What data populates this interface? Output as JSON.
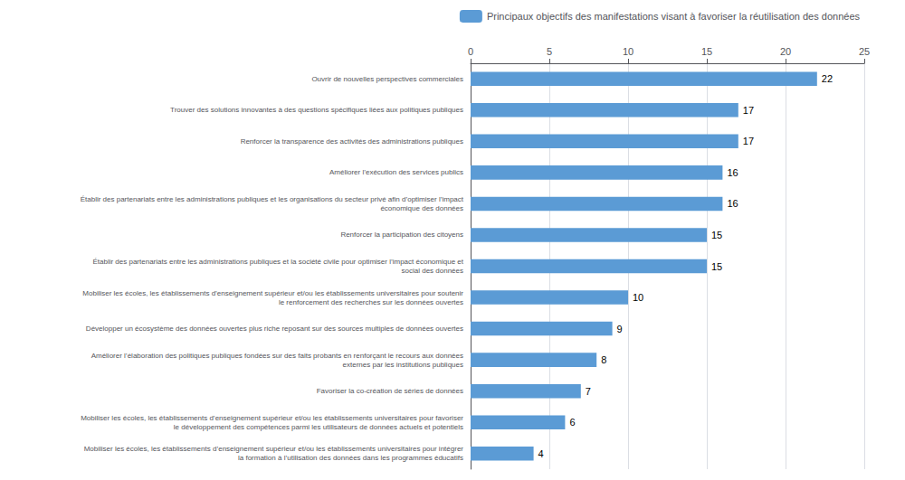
{
  "chart_data": {
    "type": "bar",
    "orientation": "horizontal",
    "categories": [
      "Ouvrir de nouvelles perspectives commerciales",
      "Trouver des solutions innovantes à des questions spécifiques liées aux politiques publiques",
      "Renforcer la transparence des activités des administrations publiques",
      "Améliorer l’exécution des services publics",
      "Établir des partenariats entre les administrations publiques et les organisations du secteur privé afin d’optimiser l’impact\néconomique des données",
      "Renforcer la participation des citoyens",
      "Établir des partenariats entre les administrations publiques et la société civile pour optimiser l’impact économique et\nsocial des données",
      "Mobiliser les écoles, les établissements d’enseignement supérieur et/ou les établissements universitaires pour soutenir\nle renforcement des recherches sur les données ouvertes",
      "Développer un écosystème des données ouvertes plus riche reposant sur des sources multiples de données ouvertes",
      "Améliorer l’élaboration des politiques publiques fondées sur des faits probants en renforçant le recours aux données\nexternes par les institutions publiques",
      "Favoriser la co-création de séries de données",
      "Mobiliser les écoles, les établissements d’enseignement supérieur et/ou les établissements universitaires pour favoriser\nle développement des compétences parmi les utilisateurs de données actuels et potentiels",
      "Mobiliser les écoles, les établissements d’enseignement supérieur et/ou les établissements universitaires pour intégrer\nla formation à l’utilisation des données dans les programmes éducatifs"
    ],
    "series": [
      {
        "name": "Principaux objectifs des manifestations visant à favoriser la réutilisation des données",
        "color": "#5b9bd5",
        "values": [
          22,
          17,
          17,
          16,
          16,
          15,
          15,
          10,
          9,
          8,
          7,
          6,
          4
        ]
      }
    ],
    "xlim": [
      0,
      25
    ],
    "xticks": [
      0,
      5,
      10,
      15,
      20,
      25
    ],
    "grid": true,
    "data_labels": true,
    "legend": "upper right"
  }
}
